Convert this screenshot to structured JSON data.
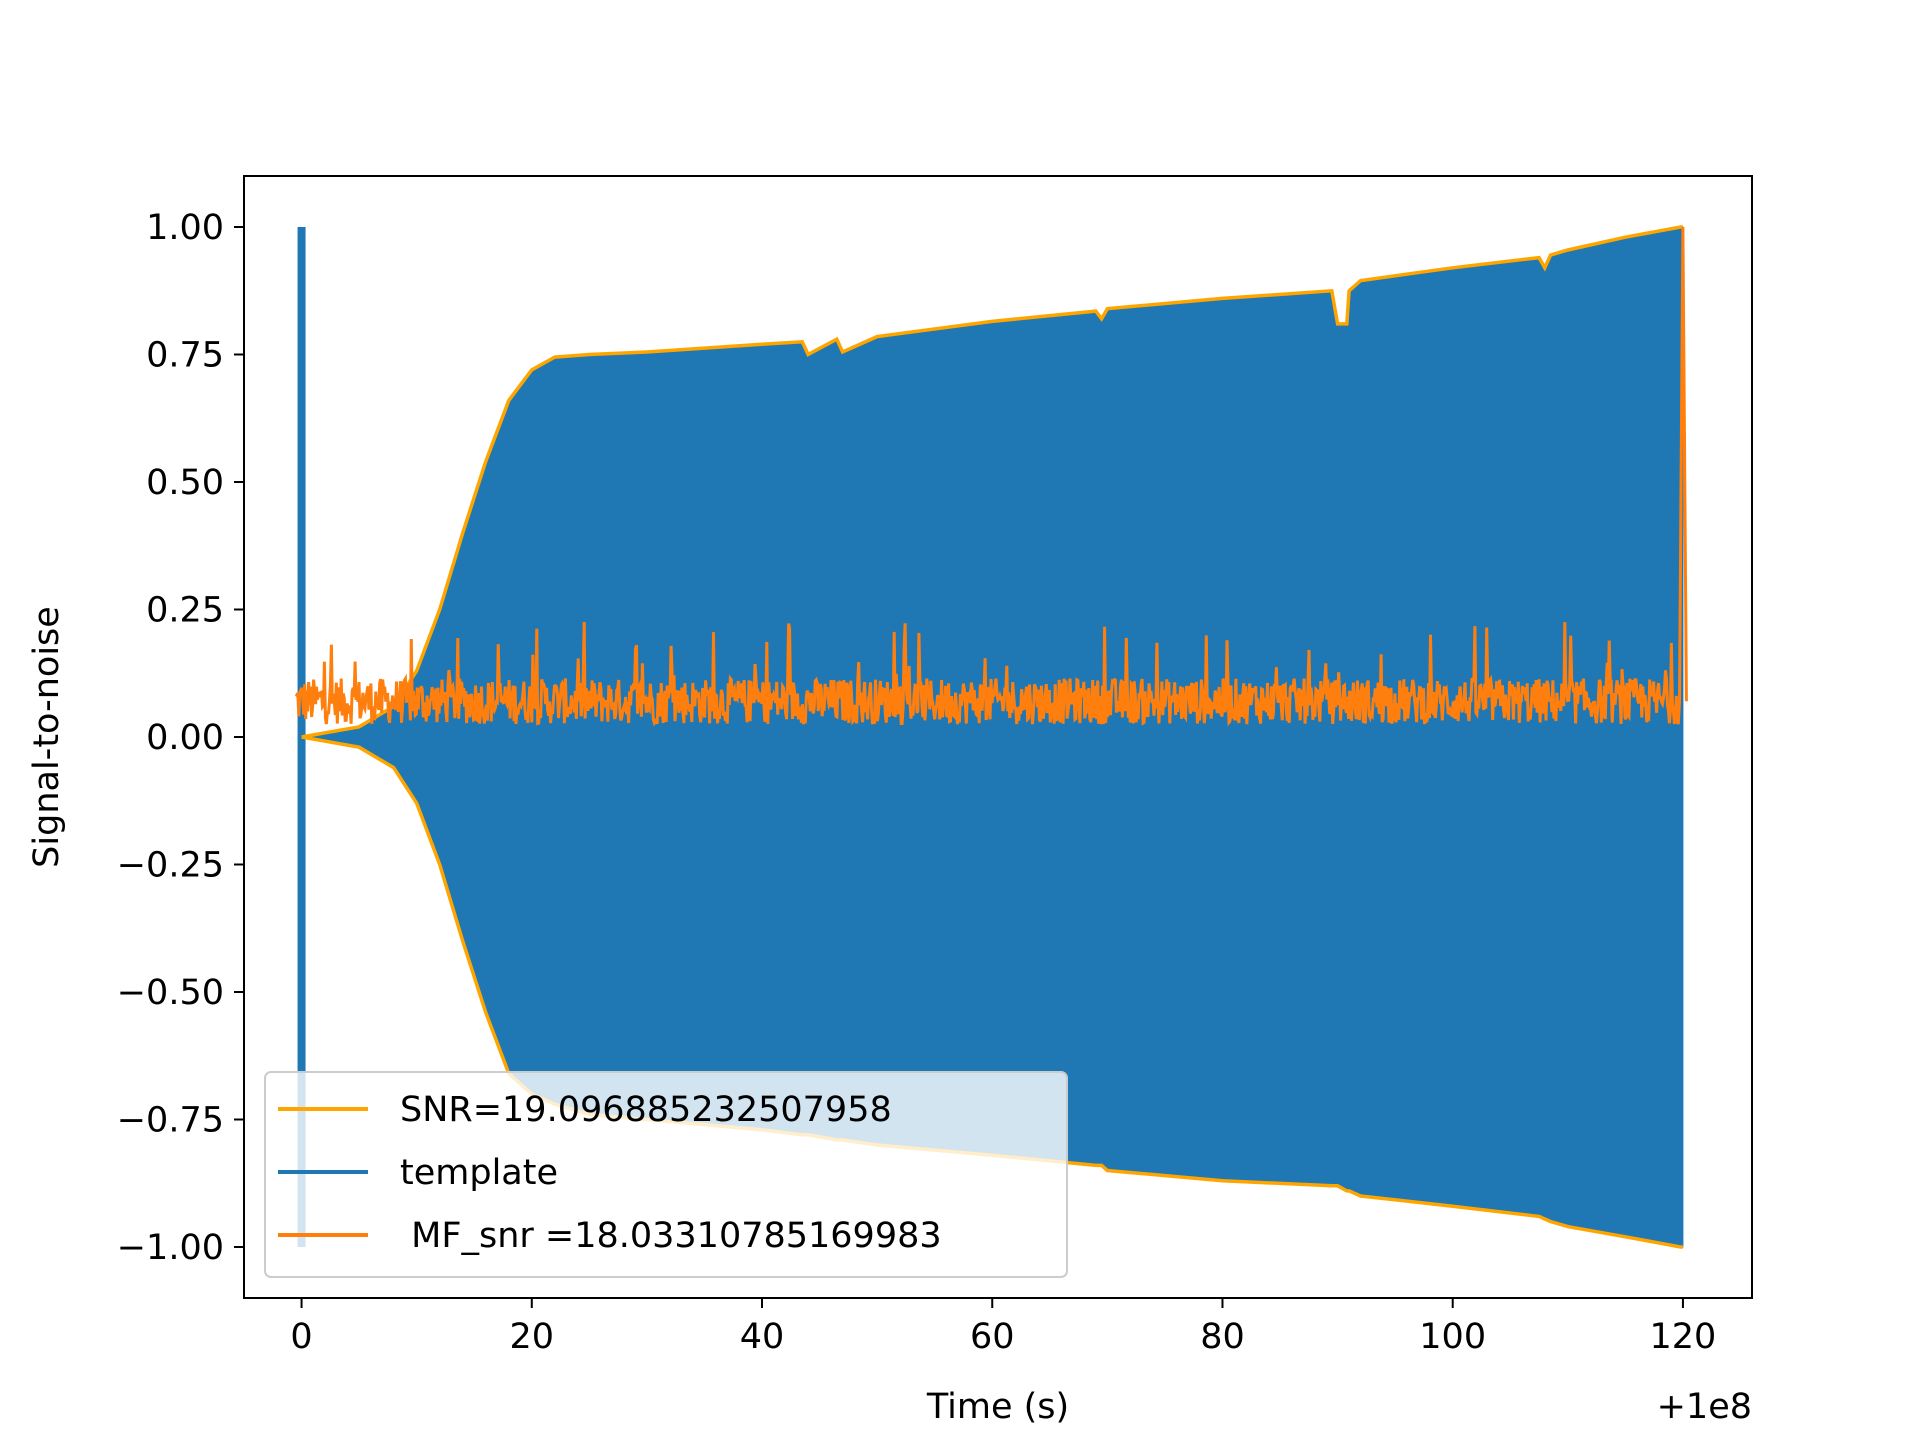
{
  "chart_data": {
    "type": "line",
    "title": "",
    "xlabel": "Time (s)",
    "ylabel": "Signal-to-noise",
    "x_offset_label": "+1e8",
    "xlim": [
      -5,
      126
    ],
    "ylim": [
      -1.1,
      1.1
    ],
    "xticks": [
      0,
      20,
      40,
      60,
      80,
      100,
      120
    ],
    "xtick_labels": [
      "0",
      "20",
      "40",
      "60",
      "80",
      "100",
      "120"
    ],
    "yticks": [
      1.0,
      0.75,
      0.5,
      0.25,
      0.0,
      -0.25,
      -0.5,
      -0.75,
      -1.0
    ],
    "ytick_labels": [
      "1.00",
      "0.75",
      "0.50",
      "0.25",
      "0.00",
      "−0.25",
      "−0.50",
      "−0.75",
      "−1.00"
    ],
    "grid": false,
    "legend_position": "lower-left",
    "colors": {
      "snr": "#ffa500",
      "template": "#1f77b4",
      "mf_snr": "#ff7f0e"
    },
    "series": [
      {
        "name": "SNR=19.096885232507958",
        "kind": "envelope",
        "x": [
          0,
          5,
          8,
          10,
          12,
          14,
          16,
          18,
          20,
          22,
          25,
          30,
          40,
          43.5,
          44,
          46.5,
          47,
          50,
          60,
          69,
          69.5,
          70,
          80,
          89.5,
          90,
          90.8,
          91,
          92,
          100,
          107.5,
          108,
          108.5,
          110,
          115,
          119.8,
          120
        ],
        "upper": [
          0,
          0.02,
          0.06,
          0.13,
          0.25,
          0.4,
          0.54,
          0.66,
          0.72,
          0.745,
          0.75,
          0.755,
          0.77,
          0.775,
          0.75,
          0.78,
          0.755,
          0.785,
          0.815,
          0.835,
          0.82,
          0.84,
          0.86,
          0.875,
          0.81,
          0.81,
          0.875,
          0.895,
          0.92,
          0.94,
          0.92,
          0.945,
          0.955,
          0.98,
          1.0,
          1.0
        ],
        "lower": [
          0,
          -0.02,
          -0.06,
          -0.13,
          -0.25,
          -0.4,
          -0.54,
          -0.66,
          -0.7,
          -0.72,
          -0.74,
          -0.75,
          -0.77,
          -0.78,
          -0.78,
          -0.79,
          -0.79,
          -0.8,
          -0.82,
          -0.84,
          -0.84,
          -0.85,
          -0.87,
          -0.88,
          -0.88,
          -0.89,
          -0.89,
          -0.9,
          -0.92,
          -0.94,
          -0.945,
          -0.95,
          -0.96,
          -0.98,
          -1.0,
          -1.0
        ]
      },
      {
        "name": "template",
        "kind": "filled-oscillation",
        "spike_x": 0,
        "spike_range": [
          -1.0,
          1.0
        ]
      },
      {
        "name": " MF_snr =18.03310785169983",
        "kind": "noise-line",
        "x_range": [
          -0.5,
          120
        ],
        "baseline": 0.07,
        "range": [
          0.0,
          0.23
        ],
        "peak_x": 120,
        "peak_y": 1.0
      }
    ]
  }
}
